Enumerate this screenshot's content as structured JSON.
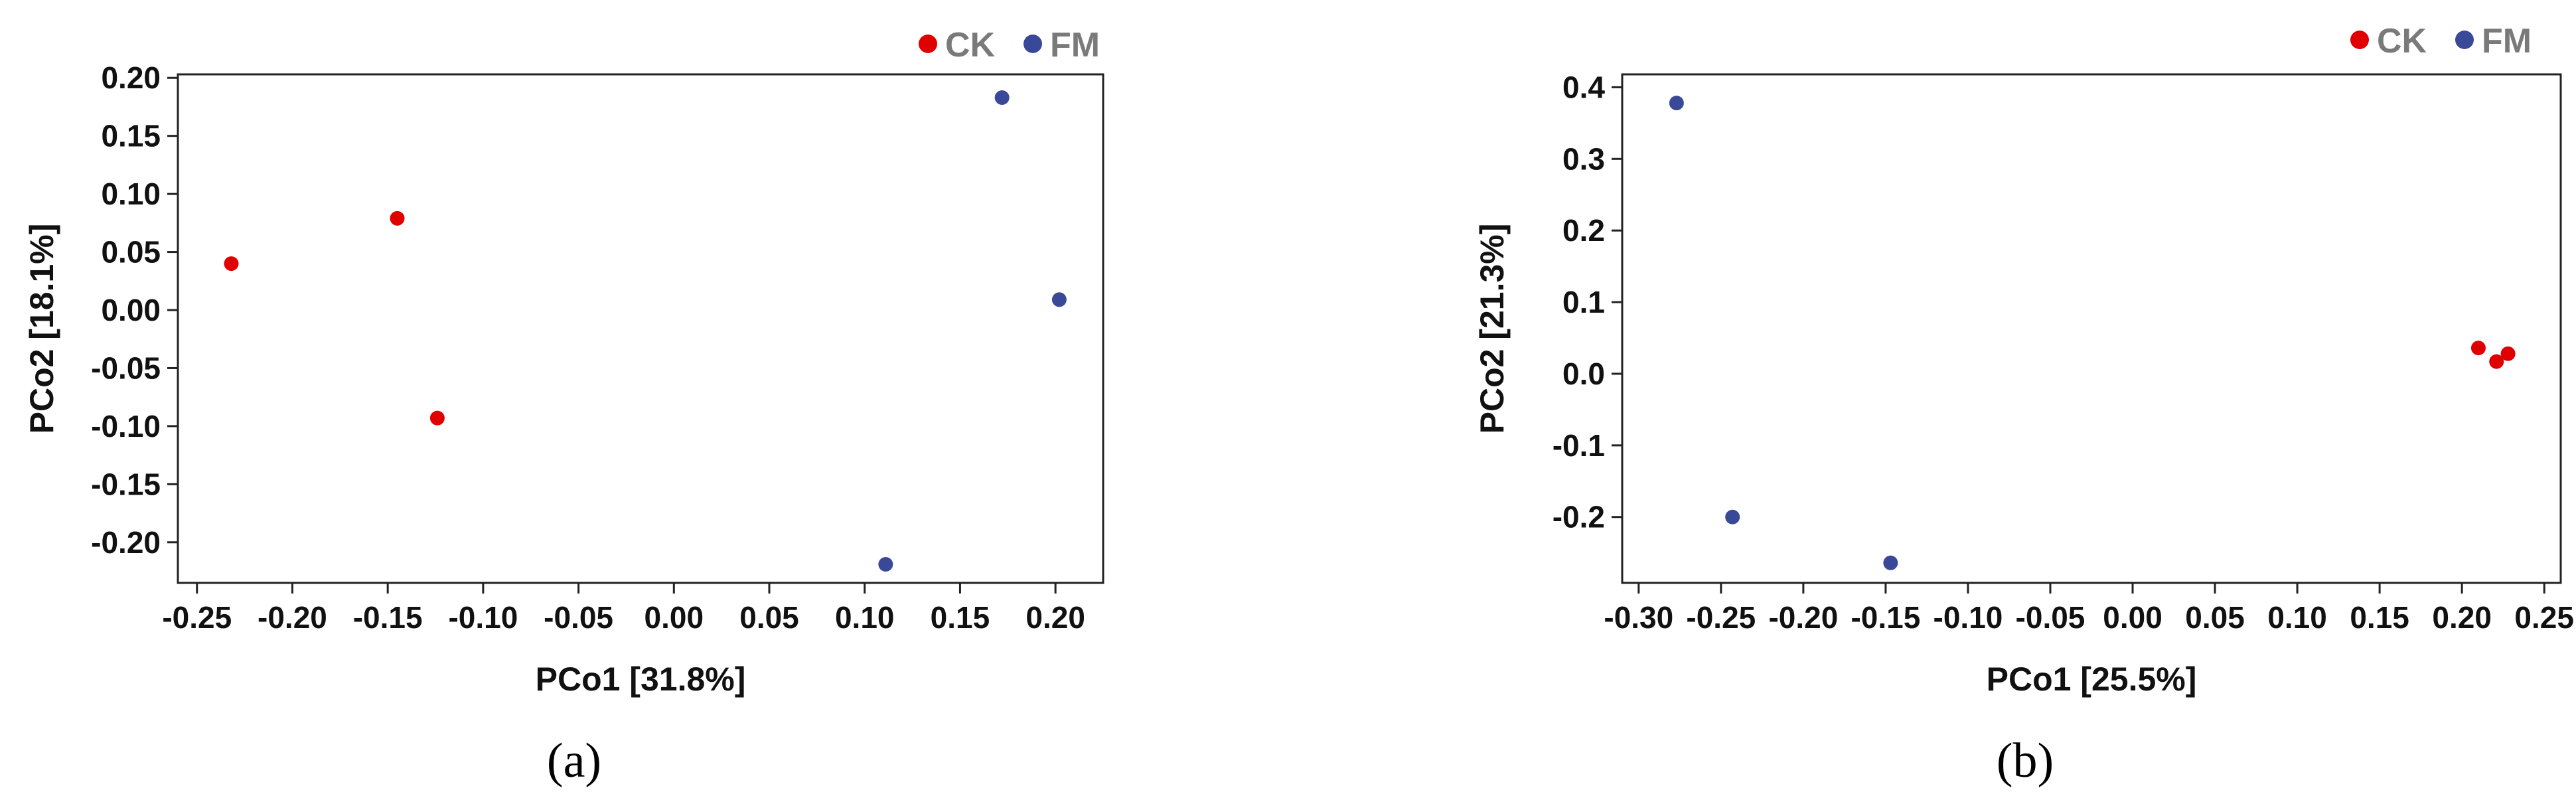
{
  "chart_data": [
    {
      "type": "scatter",
      "panel_label": "(a)",
      "xlabel": "PCo1 [31.8%]",
      "ylabel": "PCo2 [18.1%]",
      "xlim": [
        -0.26,
        0.225
      ],
      "ylim": [
        -0.235,
        0.203
      ],
      "xticks": [
        -0.25,
        -0.2,
        -0.15,
        -0.1,
        -0.05,
        0.0,
        0.05,
        0.1,
        0.15,
        0.2
      ],
      "xtick_labels": [
        "-0.25",
        "-0.20",
        "-0.15",
        "-0.10",
        "-0.05",
        "0.00",
        "0.05",
        "0.10",
        "0.15",
        "0.20"
      ],
      "yticks": [
        0.2,
        0.15,
        0.1,
        0.05,
        0.0,
        -0.05,
        -0.1,
        -0.15,
        -0.2
      ],
      "ytick_labels": [
        "0.20",
        "0.15",
        "0.10",
        "0.05",
        "0.00",
        "-0.05",
        "-0.10",
        "-0.15",
        "-0.20"
      ],
      "grid": false,
      "legend_position": "top-right",
      "series": [
        {
          "name": "CK",
          "color": "#e00000",
          "points": [
            [
              -0.232,
              0.04
            ],
            [
              -0.145,
              0.079
            ],
            [
              -0.124,
              -0.093
            ]
          ]
        },
        {
          "name": "FM",
          "color": "#3a4898",
          "points": [
            [
              0.172,
              0.183
            ],
            [
              0.202,
              0.009
            ],
            [
              0.111,
              -0.219
            ]
          ]
        }
      ]
    },
    {
      "type": "scatter",
      "panel_label": "(b)",
      "xlabel": "PCo1 [25.5%]",
      "ylabel": "PCo2 [21.3%]",
      "xlim": [
        -0.31,
        0.26
      ],
      "ylim": [
        -0.292,
        0.418
      ],
      "xticks": [
        -0.3,
        -0.25,
        -0.2,
        -0.15,
        -0.1,
        -0.05,
        0.0,
        0.05,
        0.1,
        0.15,
        0.2,
        0.25
      ],
      "xtick_labels": [
        "-0.30",
        "-0.25",
        "-0.20",
        "-0.15",
        "-0.10",
        "-0.05",
        "0.00",
        "0.05",
        "0.10",
        "0.15",
        "0.20",
        "0.25"
      ],
      "yticks": [
        0.4,
        0.3,
        0.2,
        0.1,
        0.0,
        -0.1,
        -0.2
      ],
      "ytick_labels": [
        "0.4",
        "0.3",
        "0.2",
        "0.1",
        "0.0",
        "-0.1",
        "-0.2"
      ],
      "grid": false,
      "legend_position": "top-right",
      "series": [
        {
          "name": "CK",
          "color": "#e00000",
          "points": [
            [
              0.21,
              0.036
            ],
            [
              0.221,
              0.017
            ],
            [
              0.228,
              0.028
            ]
          ]
        },
        {
          "name": "FM",
          "color": "#3a4898",
          "points": [
            [
              -0.277,
              0.378
            ],
            [
              -0.243,
              -0.2
            ],
            [
              -0.147,
              -0.264
            ]
          ]
        }
      ]
    }
  ]
}
